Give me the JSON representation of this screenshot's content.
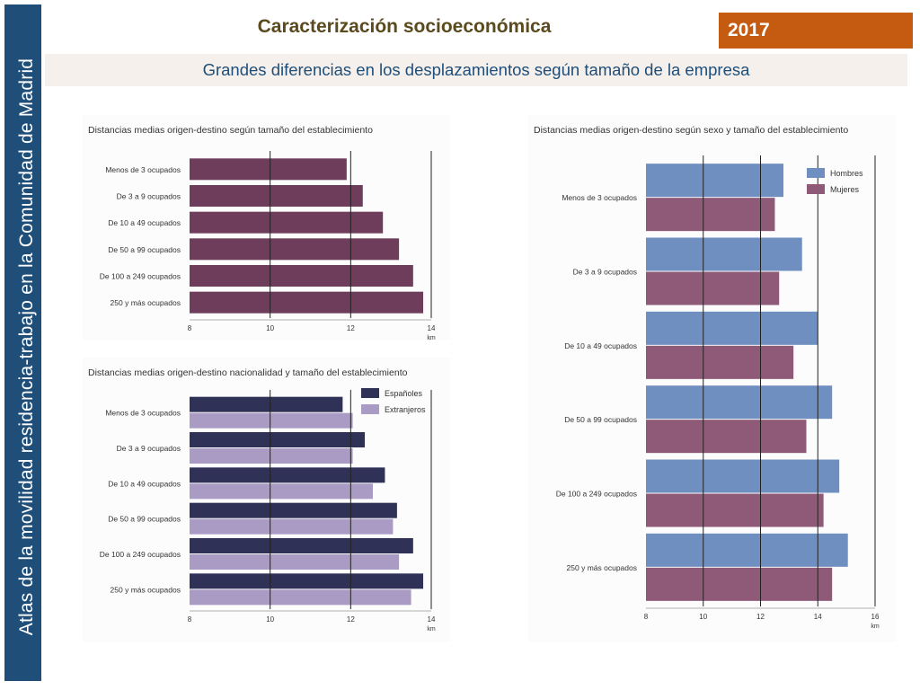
{
  "sidebar": {
    "text": "Atlas de la movilidad residencia-trabajo en la Comunidad de Madrid"
  },
  "header": {
    "title": "Caracterización socioeconómica",
    "year": "2017"
  },
  "subtitle": "Grandes diferencias en los desplazamientos según tamaño de la empresa",
  "colors": {
    "sidebar_bg": "#1f4e79",
    "year_bg": "#c55a11",
    "bar_establishment": "#6e3d5c",
    "bar_espanoles": "#2f3157",
    "bar_extranjeros": "#a99bc3",
    "bar_hombres": "#6e8fbf",
    "bar_mujeres": "#8f5a78"
  },
  "chart_data": [
    {
      "type": "bar",
      "orientation": "horizontal",
      "title": "Distancias medias origen-destino según tamaño del establecimiento",
      "categories": [
        "Menos de 3 ocupados",
        "De 3 a  9 ocupados",
        "De 10 a 49 ocupados",
        "De 50 a 99 ocupados",
        "De 100 a 249 ocupados",
        "250 y más ocupados"
      ],
      "values": [
        11.9,
        12.3,
        12.8,
        13.2,
        13.55,
        13.8
      ],
      "xlim": [
        8,
        14
      ],
      "ticks": [
        "8",
        "10",
        "12",
        "14"
      ],
      "unit": "km",
      "grid": true
    },
    {
      "type": "bar",
      "orientation": "horizontal",
      "title": "Distancias medias origen-destino nacionalidad y tamaño del establecimiento",
      "categories": [
        "Menos de 3 ocupados",
        "De 3 a  9 ocupados",
        "De 10 a 49 ocupados",
        "De 50 a 99 ocupados",
        "De 100 a 249 ocupados",
        "250 y más ocupados"
      ],
      "series": [
        {
          "name": "Españoles",
          "values": [
            11.8,
            12.35,
            12.85,
            13.15,
            13.55,
            13.8
          ]
        },
        {
          "name": "Extranjeros",
          "values": [
            12.05,
            12.05,
            12.55,
            13.05,
            13.2,
            13.5
          ]
        }
      ],
      "xlim": [
        8,
        14
      ],
      "ticks": [
        "8",
        "10",
        "12",
        "14"
      ],
      "unit": "km",
      "legend": "top-right",
      "grid": true
    },
    {
      "type": "bar",
      "orientation": "horizontal",
      "title": "Distancias medias origen-destino según sexo y tamaño del establecimiento",
      "categories": [
        "Menos de 3 ocupados",
        "De 3 a  9 ocupados",
        "De 10 a 49 ocupados",
        "De 50 a 99 ocupados",
        "De 100 a 249 ocupados",
        "250 y más ocupados"
      ],
      "series": [
        {
          "name": "Hombres",
          "values": [
            12.8,
            13.45,
            14.0,
            14.5,
            14.75,
            15.05
          ]
        },
        {
          "name": "Mujeres",
          "values": [
            12.5,
            12.65,
            13.15,
            13.6,
            14.2,
            14.5
          ]
        }
      ],
      "xlim": [
        8,
        16
      ],
      "ticks": [
        "8",
        "10",
        "12",
        "14",
        "16"
      ],
      "unit": "km",
      "legend": "top-right",
      "grid": true
    }
  ]
}
